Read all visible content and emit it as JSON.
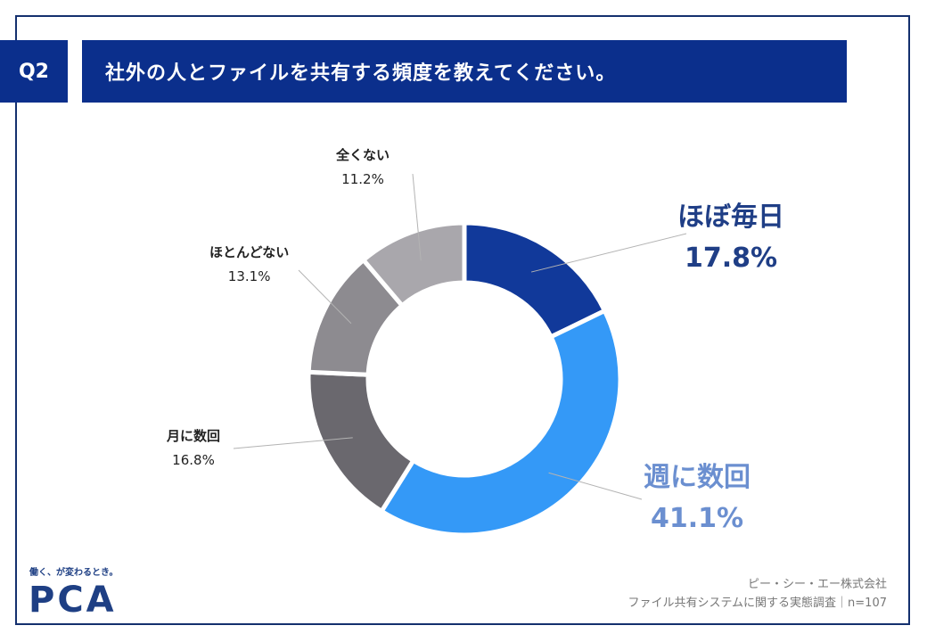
{
  "header": {
    "badge": "Q2",
    "question": "社外の人とファイルを共有する頻度を教えてください。"
  },
  "chart_data": {
    "type": "donut",
    "title": "社外の人とファイルを共有する頻度を教えてください。",
    "unit": "%",
    "series": [
      {
        "label": "ほぼ毎日",
        "value": 17.8,
        "pct_text": "17.8%",
        "color": "#11399a"
      },
      {
        "label": "週に数回",
        "value": 41.1,
        "pct_text": "41.1%",
        "color": "#3499f7"
      },
      {
        "label": "月に数回",
        "value": 16.8,
        "pct_text": "16.8%",
        "color": "#6a686e"
      },
      {
        "label": "ほとんどない",
        "value": 13.1,
        "pct_text": "13.1%",
        "color": "#8d8b90"
      },
      {
        "label": "全くない",
        "value": 11.2,
        "pct_text": "11.2%",
        "color": "#a9a7ac"
      }
    ],
    "label_colors": {
      "ほぼ毎日": "#1f3e86",
      "週に数回": "#6b8fd0"
    }
  },
  "footer": {
    "tagline": "働く、が変わるとき。",
    "logo": "PCA",
    "source_line1": "ピー・シー・エー株式会社",
    "source_line2": "ファイル共有システムに関する実態調査｜n=107"
  }
}
